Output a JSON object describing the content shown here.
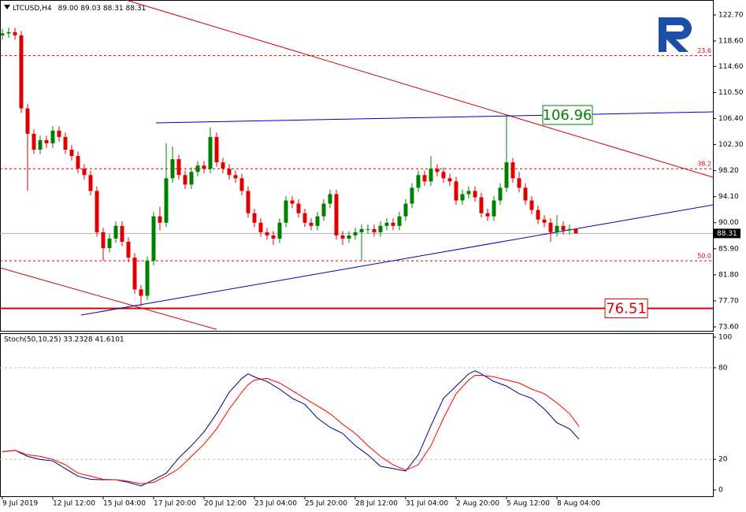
{
  "chart_data": [
    {
      "type": "candlestick",
      "title": "LTCUSD,H4",
      "quote": "89.00 89.03 88.31 88.31",
      "x": [
        0,
        2,
        4,
        6,
        8,
        10,
        12,
        14,
        16,
        18,
        20,
        22,
        24,
        26,
        28,
        30,
        32,
        34,
        36,
        38,
        40,
        42,
        44,
        46,
        48,
        50,
        52,
        54,
        56,
        58,
        60,
        62,
        64,
        66,
        68,
        70,
        72,
        74,
        76,
        78,
        80,
        82,
        84,
        86,
        88,
        90,
        92,
        94,
        96,
        98,
        100,
        102,
        104,
        106,
        108,
        110,
        112,
        114,
        116,
        118,
        120,
        122,
        124,
        126,
        128,
        130,
        132,
        134,
        136,
        138,
        140,
        142,
        144,
        146,
        148,
        150,
        152,
        154,
        156,
        158,
        160,
        162,
        164,
        166,
        168,
        170,
        172,
        174,
        176,
        178,
        180,
        182
      ],
      "open": [
        119.5,
        119.8,
        120.0,
        119.5,
        108.0,
        104.0,
        101.5,
        103.0,
        102.5,
        104.5,
        103.5,
        101.5,
        100.5,
        98.5,
        97.5,
        95.0,
        88.5,
        86.0,
        87.5,
        89.5,
        87.0,
        84.5,
        79.5,
        78.5,
        84.0,
        91.0,
        90.0,
        97.0,
        100.0,
        97.5,
        96.0,
        98.0,
        99.0,
        98.5,
        103.5,
        99.5,
        98.5,
        97.5,
        97.0,
        95.0,
        91.5,
        90.0,
        88.5,
        88.0,
        87.5,
        90.0,
        93.5,
        93.0,
        91.5,
        90.0,
        89.5,
        91.0,
        93.0,
        94.5,
        88.0,
        87.5,
        88.0,
        88.5,
        89.0,
        89.0,
        88.5,
        89.5,
        90.0,
        89.5,
        91.0,
        93.0,
        95.5,
        97.5,
        96.5,
        98.5,
        98.0,
        97.0,
        96.5,
        93.5,
        94.5,
        95.0,
        94.0,
        91.5,
        91.0,
        93.5,
        95.5,
        99.5,
        97.0,
        95.5,
        93.5,
        92.0,
        90.5,
        90.0,
        88.5,
        89.5,
        88.8,
        89.0
      ],
      "high": [
        120.5,
        120.7,
        120.7,
        120.2,
        108.7,
        104.7,
        103.7,
        103.7,
        105.2,
        105.2,
        104.2,
        102.2,
        101.2,
        99.2,
        98.2,
        95.7,
        89.2,
        88.2,
        90.2,
        90.2,
        87.7,
        85.2,
        80.2,
        84.7,
        91.7,
        92.5,
        102.5,
        102.0,
        100.7,
        98.2,
        98.7,
        99.7,
        99.7,
        105.0,
        104.2,
        100.2,
        99.2,
        98.2,
        97.7,
        95.7,
        92.2,
        90.7,
        89.2,
        88.7,
        90.7,
        94.2,
        94.2,
        93.7,
        92.2,
        90.7,
        91.7,
        93.7,
        95.2,
        95.2,
        88.7,
        88.7,
        89.2,
        89.7,
        89.7,
        89.7,
        90.2,
        90.7,
        90.7,
        91.7,
        93.7,
        96.2,
        98.2,
        98.2,
        100.5,
        99.2,
        98.7,
        97.7,
        97.2,
        95.2,
        95.7,
        95.7,
        94.7,
        92.2,
        94.2,
        96.2,
        106.96,
        100.2,
        98.0,
        96.2,
        94.2,
        92.7,
        91.2,
        90.7,
        91.2,
        90.2,
        89.7,
        89.03
      ],
      "low": [
        118.8,
        119.1,
        118.8,
        107.3,
        95.0,
        100.8,
        100.8,
        101.8,
        101.8,
        102.8,
        100.8,
        99.8,
        97.8,
        96.8,
        94.3,
        87.8,
        84.0,
        85.3,
        86.8,
        86.3,
        83.8,
        78.8,
        76.8,
        77.8,
        83.3,
        88.8,
        89.3,
        96.3,
        96.8,
        95.3,
        95.3,
        97.3,
        97.8,
        97.8,
        98.8,
        97.8,
        96.8,
        96.3,
        94.3,
        90.8,
        89.3,
        87.8,
        87.3,
        86.5,
        86.8,
        89.3,
        92.3,
        90.8,
        89.3,
        88.8,
        88.8,
        90.3,
        92.3,
        87.3,
        86.5,
        86.8,
        87.3,
        84.0,
        88.3,
        87.8,
        87.8,
        88.8,
        88.8,
        88.8,
        90.3,
        92.3,
        94.8,
        95.8,
        95.8,
        97.3,
        96.3,
        95.8,
        92.8,
        92.8,
        93.8,
        93.3,
        90.8,
        90.3,
        90.3,
        92.8,
        94.8,
        96.3,
        94.8,
        92.8,
        91.3,
        89.8,
        89.3,
        87.0,
        87.8,
        88.1,
        88.1,
        88.31
      ],
      "close": [
        119.8,
        120.0,
        119.5,
        108.0,
        104.0,
        101.5,
        103.0,
        102.5,
        104.5,
        103.5,
        101.5,
        100.5,
        98.5,
        97.5,
        95.0,
        88.5,
        86.0,
        87.5,
        89.5,
        87.0,
        84.5,
        79.5,
        78.5,
        84.0,
        91.0,
        90.0,
        97.0,
        100.0,
        97.5,
        96.0,
        98.0,
        99.0,
        98.5,
        103.5,
        99.5,
        98.5,
        97.5,
        97.0,
        95.0,
        91.5,
        90.0,
        88.5,
        88.0,
        87.5,
        90.0,
        93.5,
        93.0,
        91.5,
        90.0,
        89.5,
        91.0,
        93.0,
        94.5,
        88.0,
        87.5,
        88.0,
        88.5,
        89.0,
        89.0,
        88.5,
        89.5,
        90.0,
        89.5,
        91.0,
        93.0,
        95.5,
        97.5,
        96.5,
        98.5,
        98.0,
        97.0,
        96.5,
        93.5,
        94.5,
        95.0,
        94.0,
        91.5,
        91.0,
        93.5,
        95.5,
        99.5,
        97.0,
        95.5,
        93.5,
        92.0,
        90.5,
        90.0,
        88.5,
        89.5,
        88.8,
        89.0,
        88.31
      ],
      "up_color": "#008000",
      "down_color": "#e00000",
      "xlim": [
        -0.75,
        225.5
      ],
      "ylim": [
        72.98,
        125.06
      ],
      "yticks": [
        {
          "value": 122.7,
          "label": "122.70"
        },
        {
          "value": 118.6,
          "label": "118.60"
        },
        {
          "value": 114.6,
          "label": "114.60"
        },
        {
          "value": 110.5,
          "label": "110.50"
        },
        {
          "value": 106.4,
          "label": "106.40"
        },
        {
          "value": 102.3,
          "label": "102.30"
        },
        {
          "value": 98.2,
          "label": "98.20"
        },
        {
          "value": 94.1,
          "label": "94.10"
        },
        {
          "value": 90.0,
          "label": "90.00"
        },
        {
          "value": 85.9,
          "label": "85.90"
        },
        {
          "value": 81.8,
          "label": "81.80"
        },
        {
          "value": 77.7,
          "label": "77.70"
        },
        {
          "value": 73.6,
          "label": "73.60"
        }
      ],
      "last_price": 88.31,
      "levels": [
        {
          "label": "23.6",
          "price": 116.3
        },
        {
          "label": "38.2",
          "price": 98.5
        },
        {
          "label": "50.0",
          "price": 84.0
        }
      ],
      "support_line": {
        "value": 76.51,
        "color": "#e00000"
      },
      "callout": {
        "value": 106.96,
        "color": "#008000"
      },
      "trendlines": [
        {
          "color": "#d00000",
          "x": [
            39.25,
            225.5
          ],
          "y": [
            125.06,
            97.16
          ]
        },
        {
          "color": "#d00000",
          "x": [
            -0.75,
            68
          ],
          "y": [
            82.9,
            73.2
          ]
        },
        {
          "color": "#0000c0",
          "x": [
            48.75,
            225.5
          ],
          "y": [
            105.72,
            107.45
          ]
        },
        {
          "color": "#0000c0",
          "x": [
            25,
            225.5
          ],
          "y": [
            75.46,
            92.8
          ]
        }
      ]
    },
    {
      "type": "line",
      "title": "Stoch(50,10,25) 33.2328 41.6101",
      "x": [
        0,
        4,
        8,
        12,
        16,
        20,
        24,
        28,
        32,
        36,
        40,
        44,
        48,
        52,
        56,
        60,
        64,
        68,
        72,
        76,
        78,
        80,
        84,
        88,
        92,
        96,
        100,
        104,
        108,
        112,
        116,
        120,
        124,
        128,
        132,
        136,
        140,
        144,
        148,
        150,
        152,
        156,
        160,
        164,
        168,
        172,
        176,
        180,
        183
      ],
      "series": [
        {
          "color": "#000080",
          "values": [
            25,
            26,
            22,
            20,
            19,
            14,
            9,
            7,
            6.7,
            6.7,
            5,
            2.6,
            6.7,
            11,
            21,
            29,
            38,
            50,
            64,
            73,
            76,
            74,
            71,
            66,
            60,
            56,
            47,
            41,
            37,
            29,
            23,
            15.5,
            14,
            12.4,
            23,
            42,
            60,
            68,
            76,
            78,
            76,
            71,
            68,
            63,
            60,
            53,
            44,
            40,
            33.2328
          ]
        },
        {
          "color": "#ff0000",
          "values": [
            25,
            26,
            23,
            22,
            20,
            16.5,
            11,
            9,
            7,
            6.7,
            5.7,
            4,
            5,
            9,
            14,
            22,
            30,
            40,
            53,
            64,
            69,
            72,
            73,
            70,
            65,
            60,
            55,
            50,
            43,
            37,
            29,
            22,
            16.5,
            13,
            16.5,
            29,
            47,
            63,
            72,
            75,
            75,
            74,
            72,
            70,
            66,
            63,
            57,
            50,
            41.6101
          ]
        }
      ],
      "xlim": [
        -0.75,
        225.5
      ],
      "ylim": [
        -4.1,
        102.6
      ],
      "yticks": [
        100,
        80,
        20,
        0
      ],
      "xticks": [
        {
          "value": 0,
          "label": "9 Jul 2019"
        },
        {
          "value": 16,
          "label": "12 Jul 12:00"
        },
        {
          "value": 32,
          "label": "15 Jul 04:00"
        },
        {
          "value": 48,
          "label": "17 Jul 20:00"
        },
        {
          "value": 64,
          "label": "20 Jul 12:00"
        },
        {
          "value": 80,
          "label": "23 Jul 04:00"
        },
        {
          "value": 96,
          "label": "25 Jul 20:00"
        },
        {
          "value": 112,
          "label": "28 Jul 12:00"
        },
        {
          "value": 128,
          "label": "31 Jul 04:00"
        },
        {
          "value": 144,
          "label": "2 Aug 20:00"
        },
        {
          "value": 160,
          "label": "5 Aug 12:00"
        },
        {
          "value": 176,
          "label": "8 Aug 04:00"
        }
      ]
    }
  ]
}
